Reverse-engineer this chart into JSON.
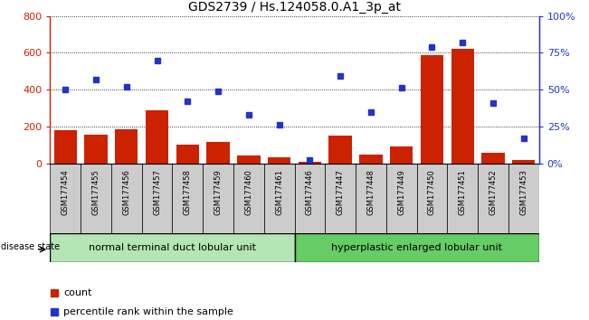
{
  "title": "GDS2739 / Hs.124058.0.A1_3p_at",
  "samples": [
    "GSM177454",
    "GSM177455",
    "GSM177456",
    "GSM177457",
    "GSM177458",
    "GSM177459",
    "GSM177460",
    "GSM177461",
    "GSM177446",
    "GSM177447",
    "GSM177448",
    "GSM177449",
    "GSM177450",
    "GSM177451",
    "GSM177452",
    "GSM177453"
  ],
  "counts": [
    180,
    155,
    185,
    290,
    100,
    115,
    42,
    32,
    10,
    150,
    48,
    92,
    585,
    620,
    55,
    18
  ],
  "percentiles": [
    50,
    57,
    52,
    70,
    42,
    49,
    33,
    26,
    2,
    59,
    35,
    51,
    79,
    82,
    41,
    17
  ],
  "group1_label": "normal terminal duct lobular unit",
  "group2_label": "hyperplastic enlarged lobular unit",
  "group1_count": 8,
  "group2_count": 8,
  "disease_state_label": "disease state",
  "bar_color": "#cc2200",
  "dot_color": "#2233cc",
  "left_axis_color": "#cc2200",
  "right_axis_color": "#2233cc",
  "ylim_left": [
    0,
    800
  ],
  "ylim_right": [
    0,
    100
  ],
  "yticks_left": [
    0,
    200,
    400,
    600,
    800
  ],
  "yticks_right": [
    0,
    25,
    50,
    75,
    100
  ],
  "ytick_labels_right": [
    "0%",
    "25%",
    "50%",
    "75%",
    "100%"
  ],
  "legend_count_label": "count",
  "legend_pct_label": "percentile rank within the sample",
  "group1_color": "#b3e6b3",
  "group2_color": "#66cc66",
  "tick_bg_color": "#cccccc",
  "grid_color": "#000000"
}
